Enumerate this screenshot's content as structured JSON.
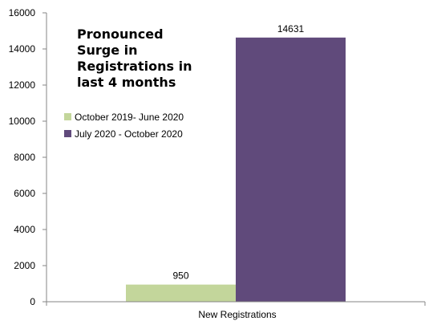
{
  "chart_data": {
    "type": "bar",
    "title": "Pronounced Surge in Registrations in last 4 months",
    "title_lines": [
      "Pronounced",
      "Surge in",
      "Registrations in",
      "last 4 months"
    ],
    "categories": [
      "New Registrations"
    ],
    "series": [
      {
        "name": "October 2019- June 2020",
        "values": [
          950
        ],
        "color": "#c3d69b"
      },
      {
        "name": "July 2020 - October 2020",
        "values": [
          14631
        ],
        "color": "#604a7b"
      }
    ],
    "xlabel": "",
    "ylabel": "",
    "ylim": [
      0,
      16000
    ],
    "yticks": [
      "0",
      "2000",
      "4000",
      "6000",
      "8000",
      "10000",
      "12000",
      "14000",
      "16000"
    ],
    "grid": false,
    "legend_position": "left, inside plot"
  }
}
